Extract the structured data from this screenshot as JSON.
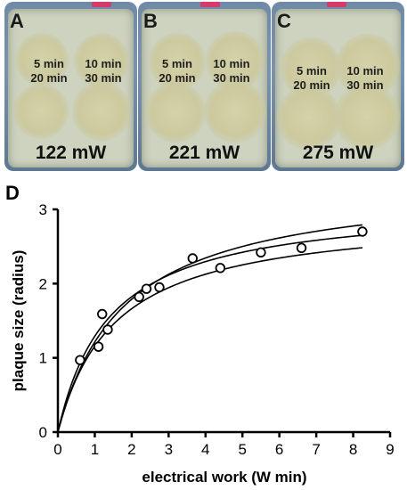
{
  "panels": [
    {
      "letter": "A",
      "times": [
        "5 min",
        "10 min",
        "20 min",
        "30 min"
      ],
      "power": "122 mW"
    },
    {
      "letter": "B",
      "times": [
        "5 min",
        "10 min",
        "20 min",
        "30 min"
      ],
      "power": "221 mW"
    },
    {
      "letter": "C",
      "times": [
        "5 min",
        "10 min",
        "20 min",
        "30 min"
      ],
      "power": "275 mW"
    }
  ],
  "chart_data": {
    "type": "scatter",
    "panel_label": "D",
    "xlabel": "electrical work (W min)",
    "ylabel": "plaque size (radius)",
    "xlim": [
      0,
      9
    ],
    "ylim": [
      0,
      3
    ],
    "xticks": [
      "0",
      "1",
      "2",
      "3",
      "4",
      "5",
      "6",
      "7",
      "8",
      "9"
    ],
    "yticks": [
      "0",
      "1",
      "2",
      "3"
    ],
    "points": {
      "x": [
        0.6,
        1.1,
        1.2,
        1.35,
        2.2,
        2.4,
        2.75,
        3.65,
        4.4,
        5.5,
        6.6,
        8.25
      ],
      "y": [
        0.97,
        1.15,
        1.59,
        1.38,
        1.82,
        1.93,
        1.95,
        2.34,
        2.21,
        2.42,
        2.48,
        2.7
      ]
    },
    "fit_curves": [
      {
        "ymax": 3.4,
        "k": 1.8
      },
      {
        "ymax": 3.1,
        "k": 1.4
      },
      {
        "ymax": 2.95,
        "k": 1.55
      }
    ],
    "grid": false
  }
}
